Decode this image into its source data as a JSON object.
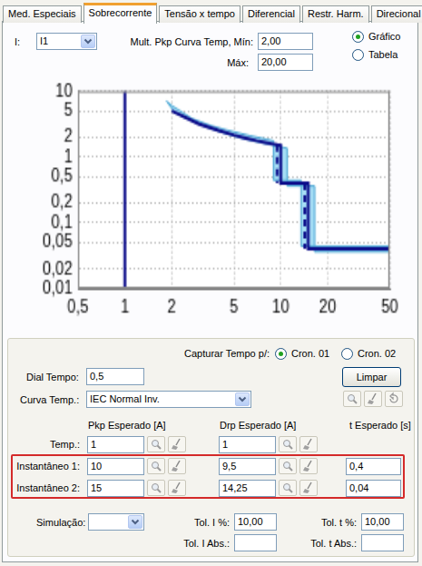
{
  "tabs": {
    "items": [
      "Med. Especiais",
      "Sobrecorrente",
      "Tensão x tempo",
      "Diferencial",
      "Restr. Harm.",
      "Direcional"
    ],
    "active": "Sobrecorrente"
  },
  "header": {
    "i_label": "I:",
    "i_value": "I1",
    "mult_min_label": "Mult. Pkp Curva Temp, Mín:",
    "mult_min": "2,00",
    "mult_max_label": "Máx:",
    "mult_max": "20,00",
    "view_options": [
      "Gráfico",
      "Tabela"
    ],
    "view_selected": "Gráfico"
  },
  "chart_data": {
    "type": "line",
    "log": true,
    "grid": true,
    "xlim": [
      0.5,
      50
    ],
    "ylim": [
      0.01,
      10
    ],
    "xticks": [
      {
        "value": 0.5,
        "label": "0,5"
      },
      1,
      2,
      5,
      10,
      20,
      50
    ],
    "yticks": [
      {
        "value": 0.01,
        "label": "0,01"
      },
      {
        "value": 0.02,
        "label": "0,02"
      },
      {
        "value": 0.05,
        "label": "0,05"
      },
      {
        "value": 0.1,
        "label": "0,1"
      },
      {
        "value": 0.2,
        "label": "0,2"
      },
      {
        "value": 0.5,
        "label": "0,5"
      },
      1,
      2,
      5,
      10
    ],
    "series": [
      {
        "type": "area",
        "color": "#a6def5",
        "x": [
          1.85,
          2.0,
          2.7,
          3.6,
          4.5,
          6.3,
          8.1,
          9.0,
          9.0,
          13.5,
          13.5,
          50,
          50,
          16.5,
          16.5,
          11.0,
          11.0,
          9.9,
          6.6,
          5.5,
          4.4,
          3.3,
          2.4,
          2.2,
          2.1
        ],
        "values": [
          7.0,
          6.0,
          3.8,
          2.95,
          2.55,
          2.1,
          1.85,
          1.75,
          0.44,
          0.44,
          0.044,
          0.044,
          0.036,
          0.036,
          0.36,
          0.36,
          1.35,
          1.42,
          1.75,
          1.95,
          2.27,
          2.86,
          4.0,
          4.55,
          4.6
        ]
      },
      {
        "type": "line",
        "color": "#0c0c8a",
        "line_style": "solid",
        "x": [
          1,
          1
        ],
        "values": [
          0.01,
          10
        ]
      },
      {
        "type": "line",
        "color": "#0c0c8a",
        "line_style": "solid",
        "x": [
          2,
          3,
          4,
          5,
          6,
          7,
          8,
          9,
          9.5,
          10,
          10,
          15,
          15,
          50
        ],
        "values": [
          5.0,
          3.15,
          2.5,
          2.14,
          1.92,
          1.76,
          1.65,
          1.56,
          1.52,
          1.49,
          0.4,
          0.4,
          0.04,
          0.04
        ]
      },
      {
        "type": "line",
        "color": "#0c0c8a",
        "line_style": "dashed",
        "x": [
          9.5,
          9.5
        ],
        "values": [
          1.52,
          0.4
        ]
      },
      {
        "type": "line",
        "color": "#0c0c8a",
        "line_style": "dashed",
        "x": [
          14.25,
          14.25
        ],
        "values": [
          0.4,
          0.04
        ]
      }
    ]
  },
  "settings": {
    "capture_label": "Capturar Tempo p/:",
    "capture_options": [
      "Cron. 01",
      "Cron. 02"
    ],
    "capture_selected": "Cron. 01",
    "clear_button": "Limpar",
    "dial_label": "Dial Tempo:",
    "dial_value": "0,5",
    "curve_label": "Curva Temp.:",
    "curve_value": "IEC Normal Inv.",
    "table": {
      "columns": [
        "Pkp Esperado [A]",
        "Drp Esperado [A]",
        "t Esperado [s]"
      ],
      "rows": [
        {
          "label": "Temp.:",
          "pkp": "1",
          "drp": "1"
        },
        {
          "label": "Instantâneo 1:",
          "pkp": "10",
          "drp": "9,5",
          "t": "0,4"
        },
        {
          "label": "Instantâneo 2:",
          "pkp": "15",
          "drp": "14,25",
          "t": "0,04"
        }
      ]
    },
    "simulation_label": "Simulação:",
    "tol_i_label": "Tol. I %:",
    "tol_i": "10,00",
    "tol_t_label": "Tol. t %:",
    "tol_t": "10,00",
    "tol_i_abs_label": "Tol. I Abs.:",
    "tol_t_abs_label": "Tol. t Abs.:"
  }
}
